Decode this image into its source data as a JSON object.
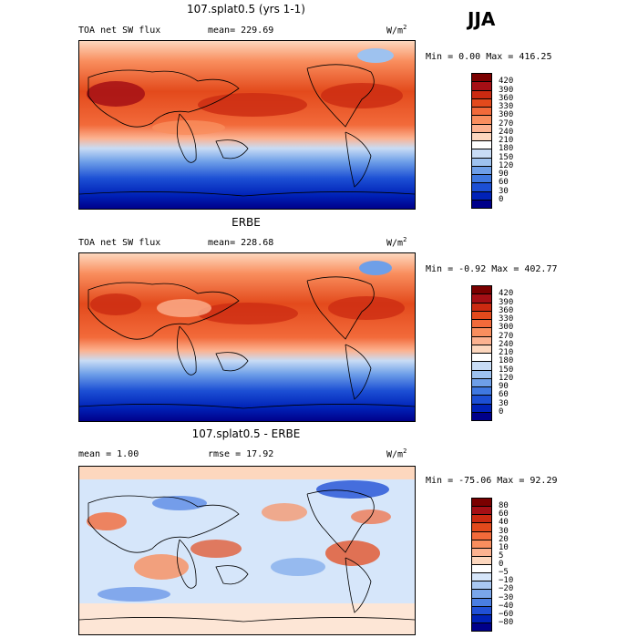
{
  "season": "JJA",
  "panels": [
    {
      "title": "107.splat0.5 (yrs 1-1)",
      "left_label": "TOA net SW flux",
      "mid_label": "mean= 229.69",
      "units": "W/m",
      "units_sup": "2",
      "minmax": "Min =   0.00 Max = 416.25",
      "colorbar": {
        "labels": [
          "420",
          "390",
          "360",
          "330",
          "300",
          "270",
          "240",
          "210",
          "180",
          "150",
          "120",
          "90",
          "60",
          "30",
          "0"
        ],
        "colors": [
          "#7a0000",
          "#a50f15",
          "#cb2a11",
          "#e34a1c",
          "#f26a3a",
          "#f98e5e",
          "#fcb290",
          "#fdd7be",
          "#ffffff",
          "#c8dcf5",
          "#9ec2ef",
          "#6e9fe8",
          "#3f78e0",
          "#1c4fd4",
          "#0022b8",
          "#00008a"
        ]
      }
    },
    {
      "title": "ERBE",
      "left_label": "TOA net SW flux",
      "mid_label": "mean= 228.68",
      "units": "W/m",
      "units_sup": "2",
      "minmax": "Min =  -0.92 Max = 402.77",
      "colorbar": {
        "labels": [
          "420",
          "390",
          "360",
          "330",
          "300",
          "270",
          "240",
          "210",
          "180",
          "150",
          "120",
          "90",
          "60",
          "30",
          "0"
        ],
        "colors": [
          "#7a0000",
          "#a50f15",
          "#cb2a11",
          "#e34a1c",
          "#f26a3a",
          "#f98e5e",
          "#fcb290",
          "#fdd7be",
          "#ffffff",
          "#c8dcf5",
          "#9ec2ef",
          "#6e9fe8",
          "#3f78e0",
          "#1c4fd4",
          "#0022b8",
          "#00008a"
        ]
      }
    },
    {
      "title": "107.splat0.5 - ERBE",
      "left_label": "mean =    1.00",
      "mid_label": "rmse =   17.92",
      "units": "W/m",
      "units_sup": "2",
      "minmax": "Min = -75.06 Max =  92.29",
      "colorbar": {
        "labels": [
          "80",
          "60",
          "40",
          "30",
          "20",
          "10",
          "5",
          "0",
          "−5",
          "−10",
          "−20",
          "−30",
          "−40",
          "−60",
          "−80"
        ],
        "colors": [
          "#7a0000",
          "#a50f15",
          "#cb2a11",
          "#e34a1c",
          "#f26a3a",
          "#f98e5e",
          "#fcb290",
          "#fdd7be",
          "#ffffff",
          "#d6e6fa",
          "#a9c8f2",
          "#7aa6ea",
          "#4a7ee2",
          "#2050d6",
          "#0022b8",
          "#00008a"
        ]
      }
    }
  ]
}
